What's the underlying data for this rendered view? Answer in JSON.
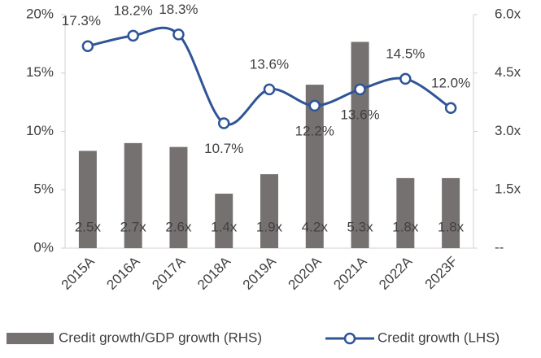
{
  "chart_data": {
    "type": "combo",
    "categories": [
      "2015A",
      "2016A",
      "2017A",
      "2018A",
      "2019A",
      "2020A",
      "2021A",
      "2022A",
      "2023F"
    ],
    "series": [
      {
        "name": "Credit growth/GDP growth (RHS)",
        "type": "bar",
        "axis": "y2",
        "color": "#767171",
        "values": [
          2.5,
          2.7,
          2.6,
          1.4,
          1.9,
          4.2,
          5.3,
          1.8,
          1.8
        ],
        "value_labels": [
          "2.5x",
          "2.7x",
          "2.6x",
          "1.4x",
          "1.9x",
          "4.2x",
          "5.3x",
          "1.8x",
          "1.8x"
        ]
      },
      {
        "name": "Credit growth (LHS)",
        "type": "line",
        "axis": "y",
        "color": "#2f5597",
        "values": [
          17.3,
          18.2,
          18.3,
          10.7,
          13.6,
          12.2,
          13.6,
          14.5,
          12.0
        ],
        "value_labels": [
          "17.3%",
          "18.2%",
          "18.3%",
          "10.7%",
          "13.6%",
          "12.2%",
          "13.6%",
          "14.5%",
          "12.0%"
        ]
      }
    ],
    "ylim": [
      0,
      20
    ],
    "yticks": [
      {
        "value": 0,
        "label": "0%"
      },
      {
        "value": 5,
        "label": "5%"
      },
      {
        "value": 10,
        "label": "10%"
      },
      {
        "value": 15,
        "label": "15%"
      },
      {
        "value": 20,
        "label": "20%"
      }
    ],
    "y2lim": [
      0,
      6
    ],
    "y2ticks": [
      {
        "value": 0,
        "label": "--"
      },
      {
        "value": 1.5,
        "label": "1.5x"
      },
      {
        "value": 3,
        "label": "3.0x"
      },
      {
        "value": 4.5,
        "label": "4.5x"
      },
      {
        "value": 6,
        "label": "6.0x"
      }
    ],
    "legend": "bottom"
  }
}
